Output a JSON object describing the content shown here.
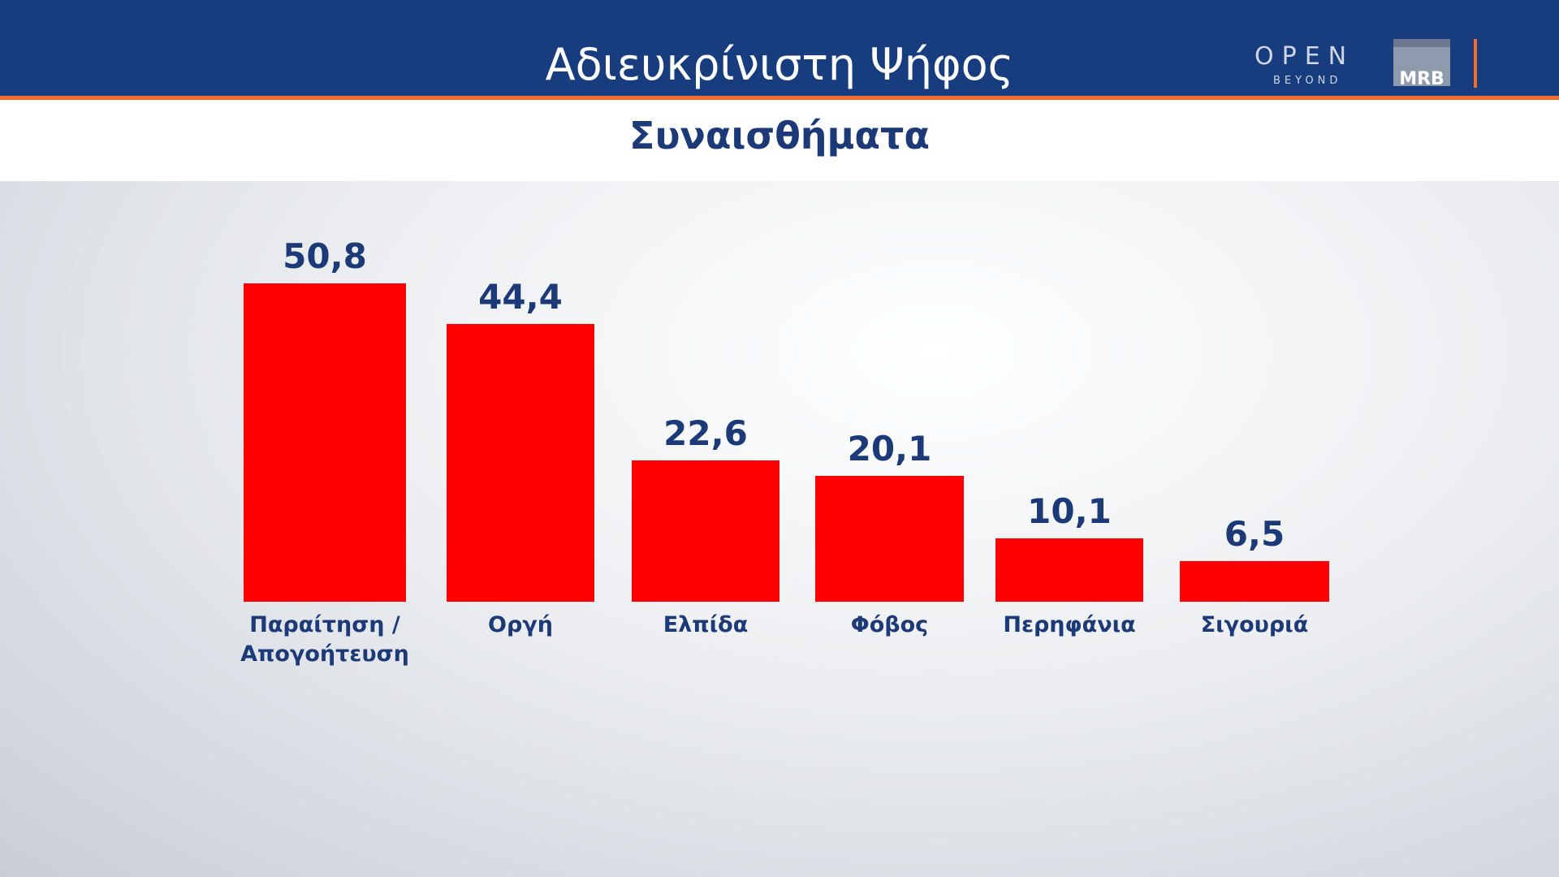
{
  "chart_data": {
    "type": "bar",
    "title": "Αδιευκρίνιστη Ψήφος",
    "subtitle": "Συναισθήματα",
    "categories": [
      "Παραίτηση / Απογοήτευση",
      "Οργή",
      "Ελπίδα",
      "Φόβος",
      "Περηφάνια",
      "Σιγουριά"
    ],
    "values": [
      50.8,
      44.4,
      22.6,
      20.1,
      10.1,
      6.5
    ],
    "value_labels": [
      "50,8",
      "44,4",
      "22,6",
      "20,1",
      "10,1",
      "6,5"
    ],
    "color": "#ff0000"
  },
  "logos": {
    "open": "OPEN",
    "beyond": "BEYOND",
    "mrb": "MRB"
  }
}
